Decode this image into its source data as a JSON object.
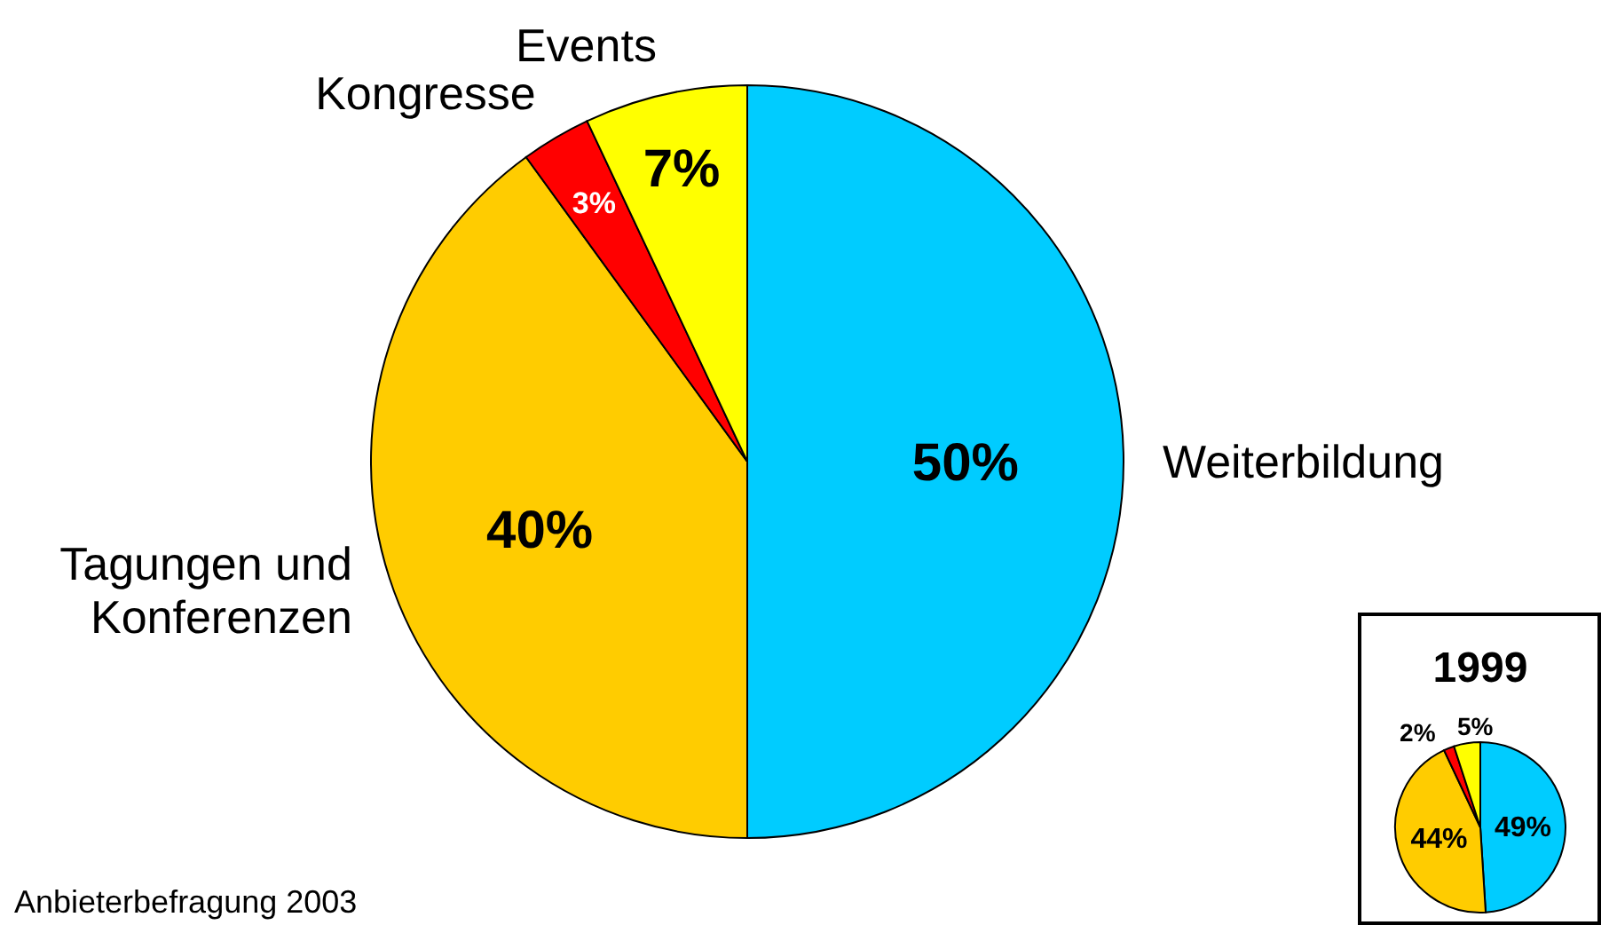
{
  "chart_data": [
    {
      "type": "pie",
      "categories": [
        "Weiterbildung",
        "Tagungen und Konferenzen",
        "Kongresse",
        "Events"
      ],
      "values": [
        50,
        40,
        3,
        7
      ],
      "colors": [
        "#00ccff",
        "#ffcc00",
        "#ff0000",
        "#ffff00"
      ],
      "value_labels": [
        "50%",
        "40%",
        "3%",
        "7%"
      ],
      "annotations": [
        "Anbieterbefragung 2003"
      ]
    },
    {
      "type": "pie",
      "title": "1999",
      "categories": [
        null,
        null,
        null,
        null
      ],
      "values": [
        49,
        44,
        2,
        5
      ],
      "colors": [
        "#00ccff",
        "#ffcc00",
        "#ff0000",
        "#ffff00"
      ],
      "value_labels": [
        "49%",
        "44%",
        "2%",
        "5%"
      ]
    }
  ]
}
